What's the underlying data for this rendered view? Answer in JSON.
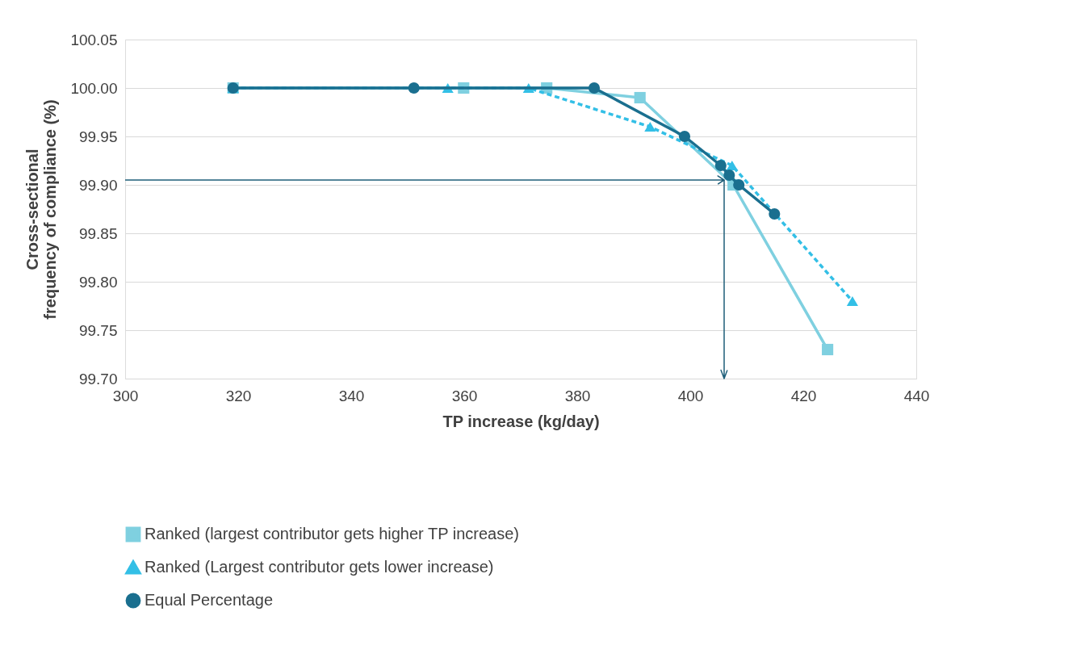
{
  "chart_data": {
    "type": "line",
    "xlabel": "TP increase (kg/day)",
    "ylabel": "Cross-sectional\nfrequency of compliance (%)",
    "xlim": [
      300,
      440
    ],
    "xticks": [
      300,
      320,
      340,
      360,
      380,
      400,
      420,
      440
    ],
    "ylim": [
      99.7,
      100.05
    ],
    "yticks": [
      100.05,
      {
        "value": 100.0,
        "label": "100.00"
      },
      99.95,
      {
        "value": 99.9,
        "label": "99.90"
      },
      99.85,
      {
        "value": 99.8,
        "label": "99.80"
      },
      99.75,
      {
        "value": 99.7,
        "label": "99.70"
      }
    ],
    "grid": "y",
    "legend": "bottom",
    "series": [
      {
        "name": "Ranked (largest contributor  gets higher TP increase)",
        "color": "#7fd0e0",
        "marker": "square",
        "line_style": "solid",
        "x": [
          319.1,
          359.9,
          374.6,
          391.1,
          407.6,
          424.3
        ],
        "values": [
          100.0,
          100.0,
          100.0,
          99.99,
          99.9,
          99.73
        ]
      },
      {
        "name": "Ranked (Largest contributor gets lower increase)",
        "color": "#33bfe6",
        "marker": "triangle",
        "line_style": "dashed",
        "x": [
          319.1,
          357.1,
          371.4,
          392.9,
          407.4,
          428.7
        ],
        "values": [
          100.0,
          100.0,
          100.0,
          99.96,
          99.92,
          99.78
        ]
      },
      {
        "name": "Equal Percentage",
        "color": "#1a6f8f",
        "marker": "circle",
        "line_style": "solid",
        "x": [
          319.1,
          351.1,
          383.0,
          399.0,
          405.4,
          406.9,
          408.6,
          414.9
        ],
        "values": [
          100.0,
          100.0,
          100.0,
          99.95,
          99.92,
          99.91,
          99.9,
          99.87
        ]
      }
    ],
    "ref_lines": [
      {
        "axis": "y",
        "value": 99.905,
        "color": "#1f5f7a"
      },
      {
        "axis": "x",
        "value": 406,
        "color": "#1f5f7a"
      }
    ]
  }
}
